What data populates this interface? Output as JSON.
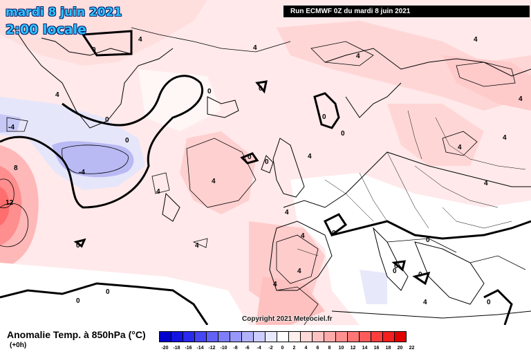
{
  "header": {
    "date": "mardi 8 juin 2021",
    "time": "2:00 locale",
    "run_info": "Run ECMWF 0Z du mardi 8 juin 2021"
  },
  "map": {
    "copyright": "Copyright 2021 Meteociel.fr",
    "contour_labels": [
      {
        "key": "0a",
        "text": "0"
      },
      {
        "key": "4a",
        "text": "4"
      },
      {
        "key": "4b",
        "text": "4"
      },
      {
        "key": "0b",
        "text": "0"
      },
      {
        "key": "4c",
        "text": "4"
      },
      {
        "key": "4d",
        "text": "4"
      },
      {
        "key": "4e",
        "text": "4"
      },
      {
        "key": "0c",
        "text": "0"
      },
      {
        "key": "4f",
        "text": "4"
      },
      {
        "key": "0d",
        "text": "0"
      },
      {
        "key": "0e",
        "text": "0"
      },
      {
        "key": "0f",
        "text": "0"
      },
      {
        "key": "m4a",
        "text": "-4"
      },
      {
        "key": "8a",
        "text": "8"
      },
      {
        "key": "m4b",
        "text": "-4"
      },
      {
        "key": "12a",
        "text": "12"
      },
      {
        "key": "4g",
        "text": "4"
      },
      {
        "key": "4h",
        "text": "4"
      },
      {
        "key": "4i",
        "text": "4"
      },
      {
        "key": "0g",
        "text": "0"
      },
      {
        "key": "0h",
        "text": "0"
      },
      {
        "key": "4j",
        "text": "4"
      },
      {
        "key": "0i",
        "text": "0"
      },
      {
        "key": "4k",
        "text": "4"
      },
      {
        "key": "0j",
        "text": "0"
      },
      {
        "key": "4l",
        "text": "4"
      },
      {
        "key": "4m",
        "text": "4"
      },
      {
        "key": "0k",
        "text": "0"
      },
      {
        "key": "0l",
        "text": "0"
      },
      {
        "key": "0m",
        "text": "0"
      },
      {
        "key": "4n",
        "text": "4"
      },
      {
        "key": "4o",
        "text": "4"
      },
      {
        "key": "0n",
        "text": "0"
      },
      {
        "key": "0o",
        "text": "0"
      },
      {
        "key": "4p",
        "text": "4"
      },
      {
        "key": "4q",
        "text": "4"
      },
      {
        "key": "0p",
        "text": "0"
      },
      {
        "key": "0q",
        "text": "0"
      },
      {
        "key": "4r",
        "text": "4"
      },
      {
        "key": "0r",
        "text": "0"
      }
    ]
  },
  "legend": {
    "title": "Anomalie Temp. à 850hPa (°C)",
    "subtitle": "(+0h)",
    "scale": [
      {
        "value": "-20",
        "color": "#0000cc"
      },
      {
        "value": "-18",
        "color": "#1414e0"
      },
      {
        "value": "-16",
        "color": "#2a2aee"
      },
      {
        "value": "-14",
        "color": "#4646f4"
      },
      {
        "value": "-12",
        "color": "#6262f6"
      },
      {
        "value": "-10",
        "color": "#7e7ef8"
      },
      {
        "value": "-8",
        "color": "#9898fa"
      },
      {
        "value": "-6",
        "color": "#b2b2fb"
      },
      {
        "value": "-4",
        "color": "#ccccfd"
      },
      {
        "value": "-2",
        "color": "#e8e8ff"
      },
      {
        "value": "0",
        "color": "#ffffff"
      },
      {
        "value": "2",
        "color": "#ffeeee"
      },
      {
        "value": "4",
        "color": "#ffd8d8"
      },
      {
        "value": "6",
        "color": "#ffc2c2"
      },
      {
        "value": "8",
        "color": "#ffaaaa"
      },
      {
        "value": "10",
        "color": "#ff9090"
      },
      {
        "value": "12",
        "color": "#ff7676"
      },
      {
        "value": "14",
        "color": "#ff5a5a"
      },
      {
        "value": "16",
        "color": "#ff3e3e"
      },
      {
        "value": "18",
        "color": "#f42020"
      },
      {
        "value": "20",
        "color": "#e00000"
      }
    ],
    "end_label": "22"
  }
}
